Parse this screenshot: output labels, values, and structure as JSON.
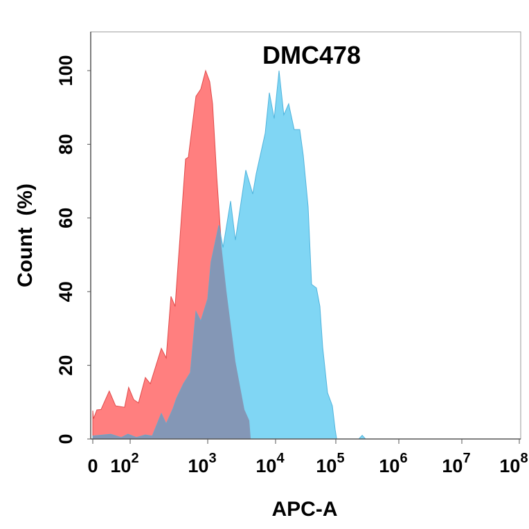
{
  "chart_data": {
    "type": "area",
    "title": "DMC478",
    "xlabel": "APC-A",
    "ylabel": "Count  (%)",
    "x_scale": "biexponential (log)",
    "xlim": [
      0,
      100000000
    ],
    "ylim": [
      0,
      110
    ],
    "grid": false,
    "legend": "none",
    "x_ticks": [
      {
        "base": "0",
        "exp": ""
      },
      {
        "base": "10",
        "exp": "2"
      },
      {
        "base": "10",
        "exp": "3"
      },
      {
        "base": "10",
        "exp": "4"
      },
      {
        "base": "10",
        "exp": "5"
      },
      {
        "base": "10",
        "exp": "6"
      },
      {
        "base": "10",
        "exp": "7"
      },
      {
        "base": "10",
        "exp": "8"
      }
    ],
    "y_ticks": [
      "0",
      "20",
      "40",
      "60",
      "80",
      "100"
    ],
    "colors": {
      "red": "#ff7f7f",
      "blue": "#80d6f4",
      "overlap": "#8497b6",
      "red_edge": "#e04a4a",
      "blue_edge": "#4fb3dc"
    },
    "series": [
      {
        "color": "red",
        "x": [
          0,
          2,
          11,
          22,
          44,
          61,
          85,
          96,
          111,
          128,
          157,
          182,
          252,
          291,
          336,
          380,
          413,
          518,
          562,
          705,
          815,
          940,
          1070,
          1180,
          1360,
          1600,
          1890,
          2560,
          3470,
          4100,
          4300
        ],
        "y": [
          7.7,
          5.5,
          7.9,
          8,
          13,
          9,
          8.6,
          14,
          10.7,
          9.8,
          16.7,
          15,
          24.6,
          22,
          38.7,
          36,
          47,
          76,
          76.5,
          93,
          95,
          100,
          97,
          91,
          71,
          52,
          40,
          21,
          8,
          5,
          0
        ]
      },
      {
        "color": "blue",
        "x": [
          0,
          30,
          48,
          76,
          94,
          120,
          157,
          193,
          252,
          291,
          358,
          396,
          487,
          598,
          705,
          815,
          1000,
          1120,
          1460,
          1680,
          2170,
          2560,
          3640,
          4600,
          5180,
          7030,
          8090,
          9540,
          11400,
          13700,
          16500,
          20400,
          25200,
          28800,
          34700,
          39600,
          47600,
          54400,
          60500,
          72800,
          87700,
          97500,
          103000,
          231000,
          262000,
          297000
        ],
        "y": [
          0.8,
          1.1,
          1.3,
          0.4,
          1.3,
          0.4,
          1.1,
          0.8,
          6.9,
          4.1,
          8.3,
          11,
          15,
          18,
          34.6,
          32,
          38,
          48,
          58,
          52,
          64.6,
          54,
          73,
          66.5,
          72,
          83,
          94,
          87,
          100,
          88,
          91,
          84,
          84,
          77,
          63,
          42,
          41,
          36,
          25,
          12.6,
          9,
          2.6,
          0,
          0,
          1,
          0
        ]
      }
    ]
  }
}
